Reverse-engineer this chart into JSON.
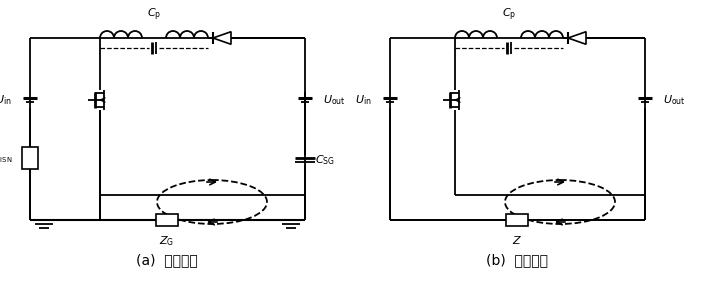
{
  "bg_color": "#ffffff",
  "line_color": "#000000",
  "label_a": "(a)  流通回路",
  "label_b": "(b)  简化回路",
  "label_fontsize": 10
}
